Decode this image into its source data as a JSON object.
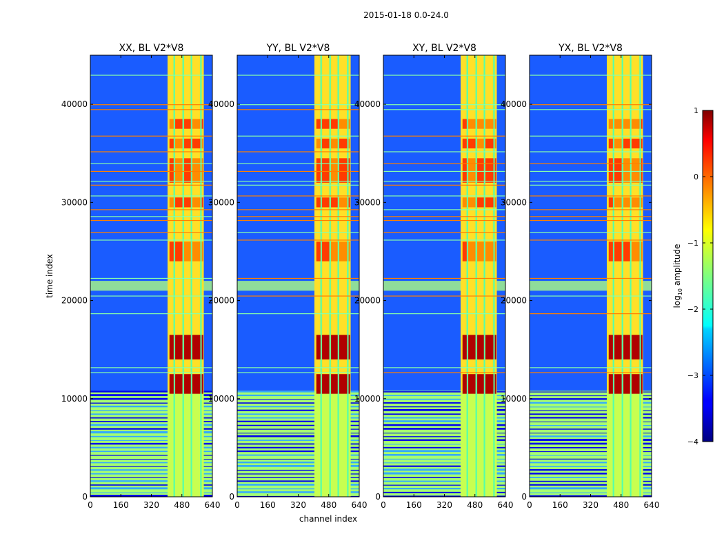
{
  "figure": {
    "suptitle": "2015-01-18 0.0-24.0"
  },
  "chart_data": {
    "type": "heatmap",
    "colormap": "jet",
    "xlabel": "channel index",
    "ylabel": "time index",
    "xlim": [
      0,
      640
    ],
    "ylim": [
      0,
      45000
    ],
    "xticks": [
      0,
      160,
      320,
      480,
      640
    ],
    "yticks": [
      0,
      10000,
      20000,
      30000,
      40000
    ],
    "colorbar": {
      "label_prefix": "log",
      "label_sub": "10",
      "label_suffix": " amplitude",
      "range": [
        -4,
        1
      ],
      "ticks": [
        1,
        0,
        -1,
        -2,
        -3,
        -4
      ],
      "tick_labels": [
        "1",
        "0",
        "−1",
        "−2",
        "−3",
        "−4"
      ]
    },
    "panels": [
      {
        "title": "XX, BL V2*V8",
        "pol": "XX"
      },
      {
        "title": "YY, BL V2*V8",
        "pol": "YY"
      },
      {
        "title": "XY, BL V2*V8",
        "pol": "XY"
      },
      {
        "title": "YX, BL V2*V8",
        "pol": "YX"
      }
    ],
    "structure": {
      "rfi_channel_band": [
        405,
        595
      ],
      "rfi_channel_gaps": [
        440,
        487,
        530,
        580
      ],
      "high_amplitude_time_ranges": [
        [
          10500,
          12500
        ],
        [
          14000,
          16500
        ],
        [
          24000,
          26000
        ],
        [
          29500,
          30500
        ],
        [
          32000,
          34500
        ],
        [
          35500,
          36500
        ],
        [
          37500,
          38500
        ]
      ],
      "flagged_time_range": [
        0,
        10800
      ],
      "flagged_band_rows": [
        21000,
        22000
      ]
    }
  },
  "colors": {
    "background_low": "#1a5cff",
    "flag_green": "#a6ff70",
    "band_yellow": "#ffe028",
    "strong_red": "#b00000"
  }
}
